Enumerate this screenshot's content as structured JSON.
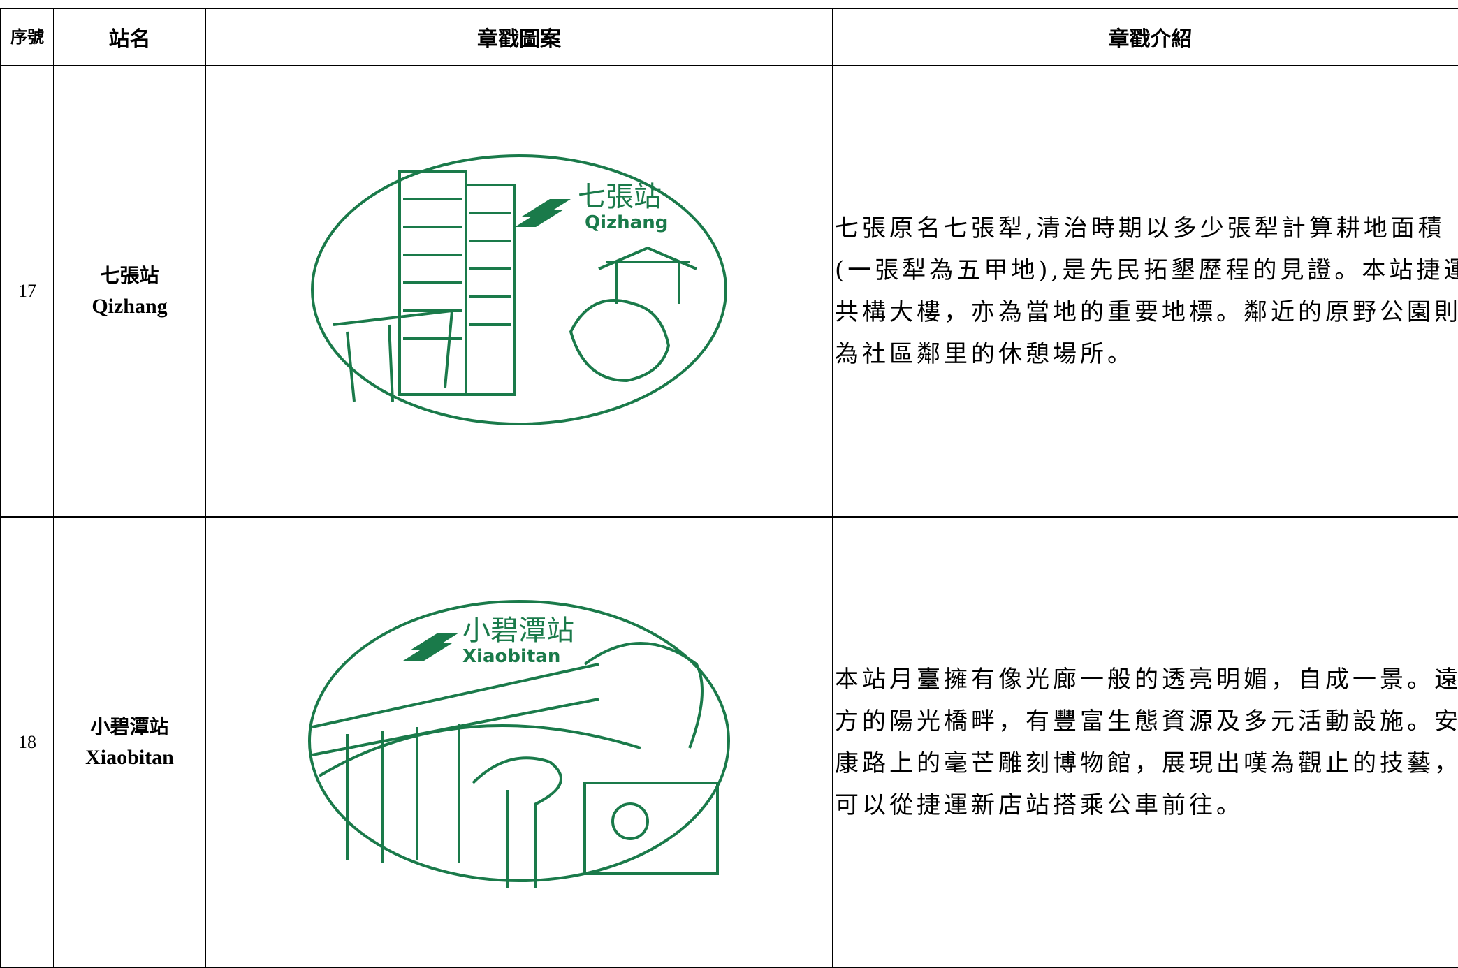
{
  "table": {
    "headers": [
      "序號",
      "站名",
      "章戳圖案",
      "章戳介紹"
    ],
    "rows": [
      {
        "no": "17",
        "name_zh": "七張站",
        "name_en": "Qizhang",
        "stamp": {
          "name_zh": "七張站",
          "name_en": "Qizhang"
        },
        "intro": "七張原名七張犁,清治時期以多少張犁計算耕地面積(一張犁為五甲地),是先民拓墾歷程的見證。本站捷運共構大樓，亦為當地的重要地標。鄰近的原野公園則為社區鄰里的休憩場所。"
      },
      {
        "no": "18",
        "name_zh": "小碧潭站",
        "name_en": "Xiaobitan",
        "stamp": {
          "name_zh": "小碧潭站",
          "name_en": "Xiaobitan"
        },
        "intro": "本站月臺擁有像光廊一般的透亮明媚，自成一景。遠方的陽光橋畔，有豐富生態資源及多元活動設施。安康路上的毫芒雕刻博物館，展現出嘆為觀止的技藝，可以從捷運新店站搭乘公車前往。"
      }
    ]
  }
}
